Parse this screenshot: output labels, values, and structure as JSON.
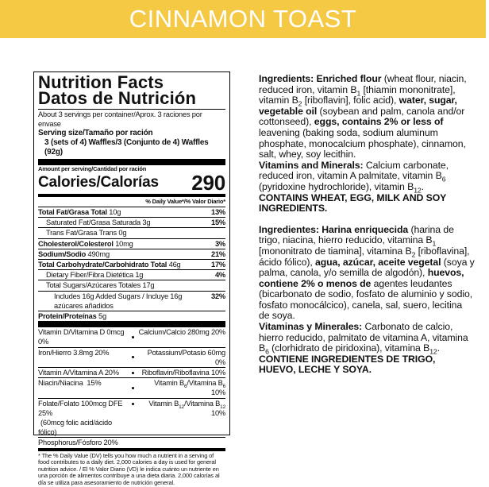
{
  "banner": "CINNAMON TOAST",
  "label": {
    "title_en": "Nutrition Facts",
    "title_es": "Datos de Nutrición",
    "servings": "About 3 servings per container/Aprox. 3 raciones por envase",
    "serving_size_label": "Serving size/Tamaño por ración",
    "serving_size": "3 (sets of 4) Waffles/3 (Conjunto de 4) Waffles (92g)",
    "amount_per_serving": "Amount per serving/Cantidad por ración",
    "calories_label": "Calories/Calorías",
    "calories": "290",
    "dv_header": "% Daily Value*/% Valor Diario*",
    "nutrients": [
      {
        "name": "Total Fat/Grasa Total",
        "amount": "10g",
        "dv": "13%"
      },
      {
        "name": "Saturated Fat/Grasa Saturada",
        "amount": "3g",
        "dv": "15%"
      },
      {
        "name": "Trans Fat/Grasa Trans",
        "amount": "0g"
      },
      {
        "name": "Cholesterol/Colesterol",
        "amount": "10mg",
        "dv": "3%"
      },
      {
        "name": "Sodium/Sodio",
        "amount": "490mg",
        "dv": "21%"
      },
      {
        "name": "Total Carbohydrate/Carbohidrato Total",
        "amount": "46g",
        "dv": "17%"
      },
      {
        "name": "Dietary Fiber/Fibra Dietética",
        "amount": "1g",
        "dv": "4%"
      },
      {
        "name": "Total Sugars/Azúcares Totales",
        "amount": "17g"
      },
      {
        "name": "Includes 16g Added Sugars / Incluye 16g azúcares añadidos",
        "dv": "32%"
      },
      {
        "name": "Protein/Proteínas",
        "amount": "5g"
      }
    ],
    "vitamins": [
      {
        "left": "Vitamin D/Vitamina D 0mcg 0%",
        "right": "Calcium/Calcio 280mg 20%"
      },
      {
        "left": "Iron/Hierro 3.8mg 20%",
        "right": "Potassium/Potasio 60mg 0%"
      },
      {
        "left": "Vitamin A/Vitamina A 20%",
        "right": "Riboflavin/Riboflavina 10%"
      },
      {
        "left": "Niacin/Niacina  15%",
        "right": [
          "Vitamin B",
          "6",
          "/Vitamina B",
          "6",
          " 10%"
        ]
      },
      {
        "left": [
          "Folate/Folato 100mcg DFE 25%",
          "(60mcg folic acid/ácido fólico)"
        ],
        "right": [
          "Vitamin B",
          "12",
          "/Vitamina B",
          "12",
          " 10%"
        ]
      },
      {
        "left": "Phosphorus/Fósforo 20%"
      }
    ],
    "footnote": "* The % Daily Value (DV) tells you how much a nutrient in a serving of food contributes to a daily diet. 2,000 calories a day is used for general nutrition advice. / El % Valor Diario (VD) le indica cuánto un nutriente en una porción de alimentos contribuye a una dieta diaria. 2,000 calorías al día se utiliza para asesoramiento de nutrición general."
  },
  "ingredients_en": [
    "Ingredients: Enriched flour",
    " (wheat flour, niacin, reduced iron, vitamin B",
    "1",
    " [thiamin mononitrate], vitamin B",
    "2",
    " [riboflavin], folic acid), ",
    "water, sugar, vegetable oil",
    " (soybean and palm, canola and/or cottonseed), ",
    "eggs, contains 2% or less of",
    " leavening (baking soda, sodium aluminum phosphate, monocalcium phosphate), cinnamon, salt, whey, soy lecithin."
  ],
  "vitamins_en": [
    "Vitamins and Minerals:",
    " Calcium carbonate, reduced iron, vitamin A palmitate, vitamin B",
    "6",
    " (pyridoxine hydrochloride), vitamin B",
    "12",
    "."
  ],
  "allergen_en": "CONTAINS WHEAT, EGG, MILK AND SOY INGREDIENTS.",
  "ingredients_es": [
    "Ingredientes: Harina enriquecida",
    " (harina de trigo, niacina, hierro reducido, vitamina B",
    "1",
    " [mononitrato de tiamina], vitamina B",
    "2",
    " [riboflavina], ácido fólico), ",
    "agua, azúcar, aceite vegetal",
    " (soya y palma, canola, y/o semilla de algodón), ",
    "huevos, contiene 2% o menos de",
    " agentes leudantes (bicarbonato de sodio, fosfato de aluminio y sodio, fosfato monocálcico), canela, sal, suero, lecitina de soya."
  ],
  "vitamins_es": [
    "Vitaminas y Minerales:",
    " Carbonato de calcio, hierro reducido, palmitato de vitamina A, vitamina B",
    "6",
    " (clorhidrato de piridoxina), vitamina B",
    "12",
    "."
  ],
  "allergen_es": "CONTIENE INGREDIENTES DE TRIGO, HUEVO, LECHE Y SOYA."
}
